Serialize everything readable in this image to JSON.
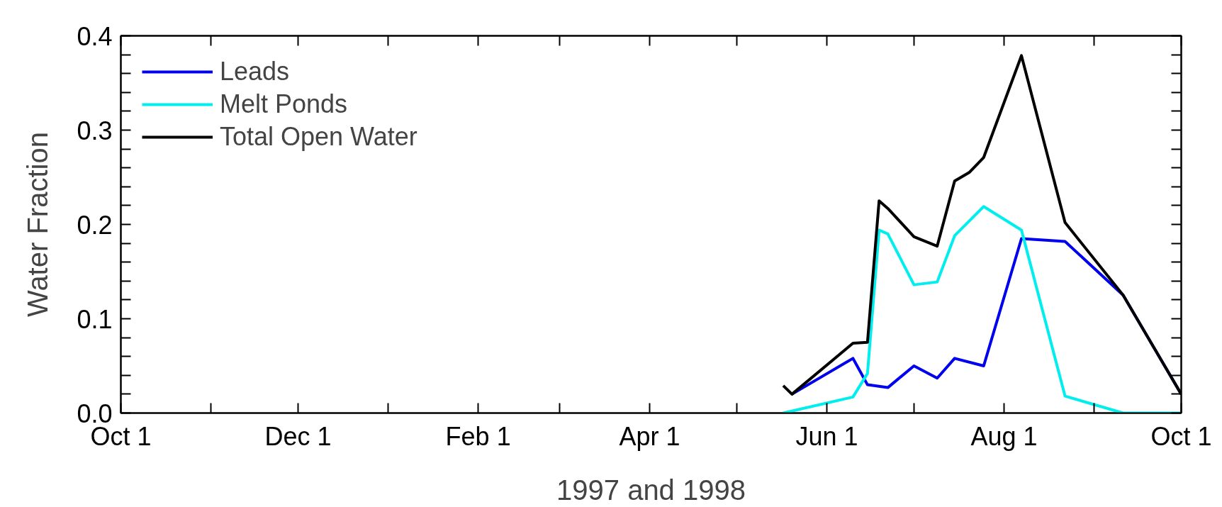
{
  "chart_data": {
    "type": "line",
    "xlabel": "1997 and 1998",
    "ylabel": "Water Fraction",
    "xlim": [
      "1997-10-01",
      "1998-10-01"
    ],
    "xticks": [
      {
        "value": "1997-10-01",
        "label": "Oct 1"
      },
      {
        "value": "1997-11-01",
        "label": null
      },
      {
        "value": "1997-12-01",
        "label": "Dec 1"
      },
      {
        "value": "1998-01-01",
        "label": null
      },
      {
        "value": "1998-02-01",
        "label": "Feb 1"
      },
      {
        "value": "1998-03-01",
        "label": null
      },
      {
        "value": "1998-04-01",
        "label": "Apr 1"
      },
      {
        "value": "1998-05-01",
        "label": null
      },
      {
        "value": "1998-06-01",
        "label": "Jun 1"
      },
      {
        "value": "1998-07-01",
        "label": null
      },
      {
        "value": "1998-08-01",
        "label": "Aug 1"
      },
      {
        "value": "1998-09-01",
        "label": null
      },
      {
        "value": "1998-10-01",
        "label": "Oct 1"
      }
    ],
    "ylim": [
      0,
      0.4
    ],
    "yticks": [
      {
        "value": 0,
        "label": "0.0"
      },
      {
        "value": 0.02,
        "label": null
      },
      {
        "value": 0.04,
        "label": null
      },
      {
        "value": 0.06,
        "label": null
      },
      {
        "value": 0.08,
        "label": null
      },
      {
        "value": 0.1,
        "label": "0.1"
      },
      {
        "value": 0.12,
        "label": null
      },
      {
        "value": 0.14,
        "label": null
      },
      {
        "value": 0.16,
        "label": null
      },
      {
        "value": 0.18,
        "label": null
      },
      {
        "value": 0.2,
        "label": "0.2"
      },
      {
        "value": 0.22,
        "label": null
      },
      {
        "value": 0.24,
        "label": null
      },
      {
        "value": 0.26,
        "label": null
      },
      {
        "value": 0.28,
        "label": null
      },
      {
        "value": 0.3,
        "label": "0.3"
      },
      {
        "value": 0.32,
        "label": null
      },
      {
        "value": 0.34,
        "label": null
      },
      {
        "value": 0.36,
        "label": null
      },
      {
        "value": 0.38,
        "label": null
      },
      {
        "value": 0.4,
        "label": "0.4"
      }
    ],
    "grid": false,
    "legend": "top left",
    "series": [
      {
        "name": "Leads",
        "color": "#0000ee",
        "x": [
          "1998-05-20",
          "1998-06-10",
          "1998-06-15",
          "1998-06-22",
          "1998-07-01",
          "1998-07-09",
          "1998-07-15",
          "1998-07-25",
          "1998-08-07",
          "1998-08-22",
          "1998-09-11",
          "1998-10-01"
        ],
        "values": [
          0.02,
          0.058,
          0.03,
          0.027,
          0.05,
          0.037,
          0.058,
          0.05,
          0.185,
          0.182,
          0.125,
          0.02
        ]
      },
      {
        "name": "Melt Ponds",
        "color": "#00eeee",
        "x": [
          "1998-05-17",
          "1998-06-10",
          "1998-06-15",
          "1998-06-19",
          "1998-06-22",
          "1998-07-01",
          "1998-07-09",
          "1998-07-15",
          "1998-07-25",
          "1998-08-07",
          "1998-08-22",
          "1998-09-11",
          "1998-10-01"
        ],
        "values": [
          0.0,
          0.017,
          0.042,
          0.194,
          0.19,
          0.136,
          0.139,
          0.188,
          0.219,
          0.194,
          0.018,
          0.0,
          0.0
        ]
      },
      {
        "name": "Total Open Water",
        "color": "#000000",
        "x": [
          "1998-05-17",
          "1998-05-20",
          "1998-06-10",
          "1998-06-15",
          "1998-06-19",
          "1998-06-22",
          "1998-07-01",
          "1998-07-09",
          "1998-07-15",
          "1998-07-20",
          "1998-07-25",
          "1998-08-07",
          "1998-08-22",
          "1998-09-11",
          "1998-10-01"
        ],
        "values": [
          0.029,
          0.02,
          0.074,
          0.075,
          0.225,
          0.217,
          0.187,
          0.177,
          0.246,
          0.255,
          0.271,
          0.379,
          0.202,
          0.125,
          0.02
        ]
      }
    ]
  }
}
